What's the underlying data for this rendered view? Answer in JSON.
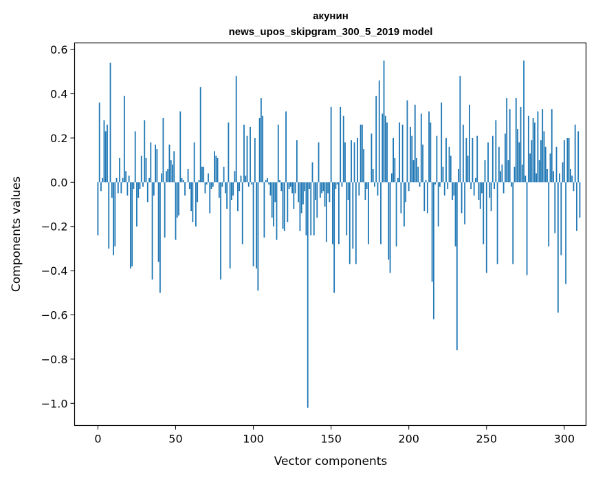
{
  "chart_data": {
    "type": "bar",
    "title": "акунин",
    "subtitle": "news_upos_skipgram_300_5_2019 model",
    "xlabel": "Vector components",
    "ylabel": "Components values",
    "xlim": [
      -15,
      314
    ],
    "ylim": [
      -1.1,
      0.63
    ],
    "x_ticks": [
      0,
      50,
      100,
      150,
      200,
      250,
      300
    ],
    "x_tick_labels": [
      "0",
      "50",
      "100",
      "150",
      "200",
      "250",
      "300"
    ],
    "y_ticks": [
      -1.0,
      -0.8,
      -0.6,
      -0.4,
      -0.2,
      0.0,
      0.2,
      0.4,
      0.6
    ],
    "y_tick_labels": [
      "−1.0",
      "−0.8",
      "−0.6",
      "−0.4",
      "−0.2",
      "0.0",
      "0.2",
      "0.4",
      "0.6"
    ],
    "bar_color": "#1f77b4",
    "grid": false,
    "values": [
      -0.24,
      0.36,
      -0.04,
      0.02,
      0.28,
      0.23,
      0.26,
      -0.3,
      0.54,
      -0.07,
      -0.33,
      -0.29,
      0.02,
      -0.05,
      0.11,
      -0.05,
      0.02,
      0.39,
      0.05,
      -0.06,
      0.03,
      -0.39,
      -0.38,
      -0.03,
      0.23,
      -0.2,
      -0.07,
      -0.03,
      0.12,
      -0.02,
      0.28,
      0.11,
      -0.09,
      0.02,
      0.18,
      -0.44,
      -0.06,
      0.17,
      0.15,
      -0.36,
      -0.5,
      0.04,
      0.29,
      -0.25,
      0.05,
      0.06,
      0.17,
      0.1,
      0.08,
      0.14,
      -0.26,
      -0.16,
      -0.15,
      0.32,
      0.02,
      0.01,
      -0.06,
      0.0,
      0.06,
      -0.03,
      -0.13,
      -0.18,
      0.18,
      -0.2,
      -0.09,
      0.01,
      0.43,
      0.07,
      0.07,
      -0.05,
      -0.01,
      0.04,
      -0.14,
      -0.03,
      -0.02,
      0.14,
      0.12,
      0.11,
      -0.07,
      -0.44,
      -0.02,
      0.07,
      -0.05,
      -0.12,
      0.27,
      -0.39,
      -0.08,
      -0.06,
      0.05,
      0.48,
      -0.13,
      -0.04,
      0.03,
      -0.28,
      0.26,
      0.03,
      0.21,
      -0.02,
      0.25,
      -0.01,
      -0.38,
      0.2,
      -0.39,
      -0.49,
      0.29,
      0.38,
      0.3,
      -0.25,
      0.01,
      0.02,
      -0.01,
      -0.06,
      -0.16,
      -0.2,
      -0.09,
      -0.26,
      0.26,
      0.01,
      -0.04,
      -0.21,
      -0.22,
      0.32,
      -0.18,
      -0.03,
      -0.02,
      -0.05,
      -0.12,
      -0.05,
      0.19,
      -0.09,
      -0.22,
      -0.14,
      -0.1,
      -0.04,
      -0.24,
      -1.02,
      -0.03,
      -0.24,
      0.09,
      -0.24,
      -0.08,
      -0.16,
      0.18,
      -0.07,
      -0.05,
      -0.04,
      -0.11,
      -0.27,
      -0.05,
      -0.09,
      0.34,
      -0.28,
      -0.5,
      -0.03,
      -0.01,
      -0.28,
      0.34,
      -0.02,
      0.3,
      0.18,
      -0.24,
      -0.08,
      -0.37,
      0.19,
      -0.3,
      0.18,
      -0.37,
      0.2,
      -0.06,
      0.26,
      0.26,
      0.15,
      -0.08,
      -0.03,
      -0.28,
      0.0,
      0.22,
      0.06,
      -0.02,
      0.39,
      -0.06,
      0.46,
      -0.28,
      0.31,
      0.55,
      0.3,
      0.27,
      -0.35,
      -0.41,
      0.04,
      0.2,
      0.11,
      -0.29,
      0.02,
      0.27,
      -0.14,
      0.26,
      -0.2,
      -0.09,
      0.37,
      -0.04,
      0.25,
      0.21,
      0.1,
      0.35,
      0.11,
      0.07,
      -0.02,
      0.31,
      0.17,
      -0.13,
      0.01,
      -0.14,
      0.32,
      0.27,
      -0.45,
      -0.62,
      -0.01,
      0.21,
      -0.2,
      -0.02,
      0.36,
      0.07,
      -0.06,
      0.2,
      -0.03,
      0.16,
      0.12,
      -0.08,
      -0.06,
      -0.29,
      -0.76,
      0.06,
      0.48,
      -0.14,
      0.26,
      -0.19,
      0.2,
      0.12,
      0.35,
      -0.03,
      0.2,
      -0.06,
      0.02,
      0.21,
      -0.08,
      -0.12,
      -0.05,
      -0.28,
      0.1,
      -0.41,
      0.18,
      -0.07,
      -0.13,
      0.21,
      -0.03,
      0.28,
      -0.37,
      0.16,
      0.05,
      0.08,
      -0.05,
      0.22,
      0.38,
      0.1,
      0.33,
      -0.02,
      -0.37,
      0.07,
      0.38,
      0.24,
      0.18,
      0.34,
      0.08,
      0.55,
      0.03,
      -0.42,
      0.3,
      0.13,
      0.19,
      0.29,
      0.27,
      0.04,
      0.32,
      0.1,
      0.19,
      0.33,
      0.23,
      0.16,
      0.06,
      -0.29,
      0.13,
      0.33,
      0.05,
      -0.23,
      0.16,
      -0.59,
      0.04,
      -0.33,
      0.09,
      0.19,
      -0.46,
      0.2,
      0.2,
      0.06,
      0.03,
      -0.04,
      0.26,
      -0.22,
      0.23,
      -0.16
    ]
  }
}
